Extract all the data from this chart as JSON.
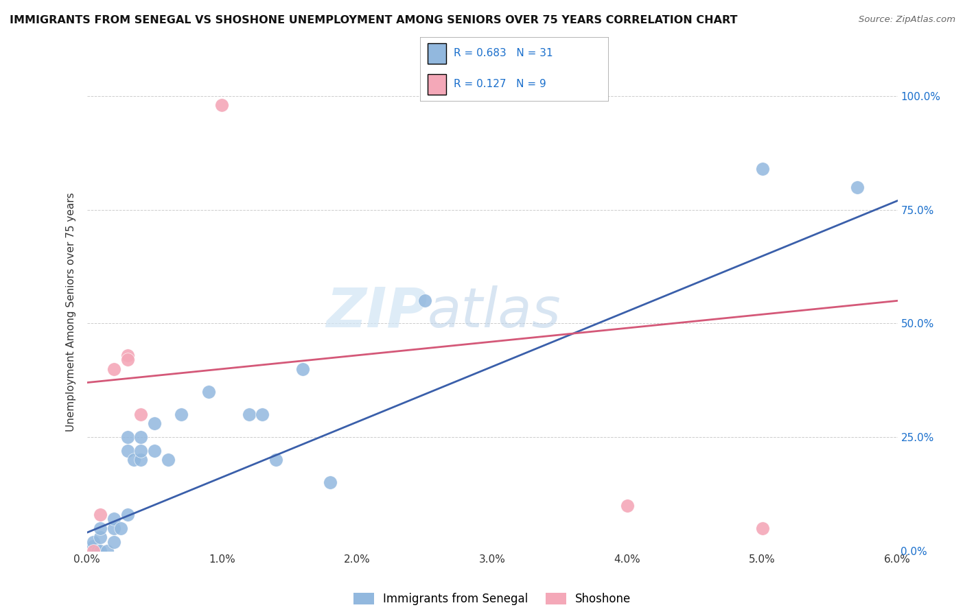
{
  "title": "IMMIGRANTS FROM SENEGAL VS SHOSHONE UNEMPLOYMENT AMONG SENIORS OVER 75 YEARS CORRELATION CHART",
  "source": "Source: ZipAtlas.com",
  "ylabel": "Unemployment Among Seniors over 75 years",
  "xlim": [
    0.0,
    0.06
  ],
  "ylim": [
    0.0,
    1.05
  ],
  "ytick_labels": [
    "0.0%",
    "25.0%",
    "50.0%",
    "75.0%",
    "100.0%"
  ],
  "ytick_values": [
    0.0,
    0.25,
    0.5,
    0.75,
    1.0
  ],
  "xtick_labels": [
    "0.0%",
    "1.0%",
    "2.0%",
    "3.0%",
    "4.0%",
    "5.0%",
    "6.0%"
  ],
  "xtick_values": [
    0.0,
    0.01,
    0.02,
    0.03,
    0.04,
    0.05,
    0.06
  ],
  "blue_R": 0.683,
  "blue_N": 31,
  "pink_R": 0.127,
  "pink_N": 9,
  "blue_color": "#92b8de",
  "pink_color": "#f4a8b8",
  "trendline_blue": "#3a5faa",
  "trendline_pink": "#d45878",
  "legend_text_color": "#1a6fcc",
  "legend_label_color": "#333333",
  "watermark_zip": "ZIP",
  "watermark_atlas": "atlas",
  "blue_scatter": [
    [
      0.0005,
      0.01
    ],
    [
      0.0005,
      0.02
    ],
    [
      0.0008,
      0.0
    ],
    [
      0.001,
      0.0
    ],
    [
      0.001,
      0.03
    ],
    [
      0.001,
      0.05
    ],
    [
      0.0015,
      0.0
    ],
    [
      0.002,
      0.02
    ],
    [
      0.002,
      0.05
    ],
    [
      0.002,
      0.07
    ],
    [
      0.0025,
      0.05
    ],
    [
      0.003,
      0.08
    ],
    [
      0.003,
      0.22
    ],
    [
      0.003,
      0.25
    ],
    [
      0.0035,
      0.2
    ],
    [
      0.004,
      0.2
    ],
    [
      0.004,
      0.22
    ],
    [
      0.004,
      0.25
    ],
    [
      0.005,
      0.22
    ],
    [
      0.005,
      0.28
    ],
    [
      0.006,
      0.2
    ],
    [
      0.007,
      0.3
    ],
    [
      0.009,
      0.35
    ],
    [
      0.012,
      0.3
    ],
    [
      0.013,
      0.3
    ],
    [
      0.014,
      0.2
    ],
    [
      0.016,
      0.4
    ],
    [
      0.018,
      0.15
    ],
    [
      0.025,
      0.55
    ],
    [
      0.05,
      0.84
    ],
    [
      0.057,
      0.8
    ]
  ],
  "pink_scatter": [
    [
      0.0005,
      0.0
    ],
    [
      0.001,
      0.08
    ],
    [
      0.002,
      0.4
    ],
    [
      0.003,
      0.43
    ],
    [
      0.003,
      0.42
    ],
    [
      0.004,
      0.3
    ],
    [
      0.01,
      0.98
    ],
    [
      0.04,
      0.1
    ],
    [
      0.05,
      0.05
    ]
  ],
  "blue_line_x": [
    0.0,
    0.06
  ],
  "blue_line_y": [
    0.04,
    0.77
  ],
  "pink_line_x": [
    0.0,
    0.06
  ],
  "pink_line_y": [
    0.37,
    0.55
  ],
  "legend_blue_label": "Immigrants from Senegal",
  "legend_pink_label": "Shoshone"
}
